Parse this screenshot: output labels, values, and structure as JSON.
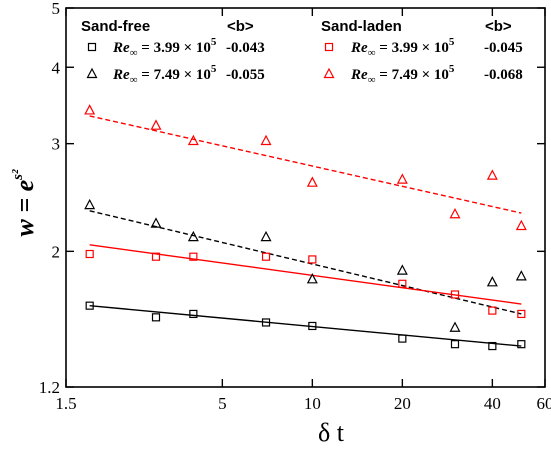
{
  "chart_data": {
    "type": "scatter",
    "x_scale": "log",
    "y_scale": "log",
    "xlim": [
      1.5,
      60
    ],
    "ylim": [
      1.2,
      5
    ],
    "x_ticks": [
      1.5,
      5,
      10,
      20,
      40,
      60
    ],
    "x_tick_labels": [
      "1.5",
      "5",
      "10",
      "20",
      "40",
      "60"
    ],
    "y_ticks": [
      1.2,
      2,
      3,
      4,
      5
    ],
    "y_tick_labels": [
      "1.2",
      "2",
      "3",
      "4",
      "5"
    ],
    "xlabel": "δ t",
    "ylabel_main": "w = e",
    "ylabel_sup": "s²",
    "grid": false,
    "legend": {
      "placement": "top",
      "group_headers": [
        "Sand-free",
        "Sand-laden"
      ],
      "col_header": "<b>",
      "re_prefix": "Re",
      "re_sub": "∞",
      "re_eq": " = ",
      "re_unit": " × 10",
      "re_exp": "5"
    },
    "series": [
      {
        "group": "Sand-free",
        "re": "3.99",
        "b": "-0.043",
        "marker": "square",
        "color": "#000000",
        "line_style": "solid",
        "x": [
          1.8,
          3,
          4,
          7,
          10,
          20,
          30,
          40,
          50
        ],
        "y": [
          1.63,
          1.56,
          1.58,
          1.53,
          1.51,
          1.44,
          1.41,
          1.4,
          1.41
        ],
        "fit_x": [
          1.8,
          50
        ],
        "fit_y": [
          1.63,
          1.4
        ]
      },
      {
        "group": "Sand-free",
        "re": "7.49",
        "b": "-0.055",
        "marker": "triangle",
        "color": "#000000",
        "line_style": "dashed",
        "x": [
          1.8,
          3,
          4,
          7,
          10,
          20,
          30,
          40,
          50
        ],
        "y": [
          2.38,
          2.22,
          2.11,
          2.11,
          1.8,
          1.86,
          1.5,
          1.78,
          1.82
        ],
        "fit_x": [
          1.8,
          50
        ],
        "fit_y": [
          2.33,
          1.58
        ]
      },
      {
        "group": "Sand-laden",
        "re": "3.99",
        "b": "-0.045",
        "marker": "square",
        "color": "#ff0000",
        "line_style": "solid",
        "x": [
          1.8,
          3,
          4,
          7,
          10,
          20,
          30,
          40,
          50
        ],
        "y": [
          1.98,
          1.96,
          1.96,
          1.96,
          1.94,
          1.77,
          1.7,
          1.6,
          1.58
        ],
        "fit_x": [
          1.8,
          50
        ],
        "fit_y": [
          2.05,
          1.64
        ]
      },
      {
        "group": "Sand-laden",
        "re": "7.49",
        "b": "-0.068",
        "marker": "triangle",
        "color": "#ff0000",
        "line_style": "dashed",
        "x": [
          1.8,
          3,
          4,
          7,
          10,
          20,
          30,
          40,
          50
        ],
        "y": [
          3.4,
          3.21,
          3.03,
          3.03,
          2.59,
          2.62,
          2.3,
          2.66,
          2.2
        ],
        "fit_x": [
          1.8,
          50
        ],
        "fit_y": [
          3.33,
          2.31
        ]
      }
    ]
  }
}
